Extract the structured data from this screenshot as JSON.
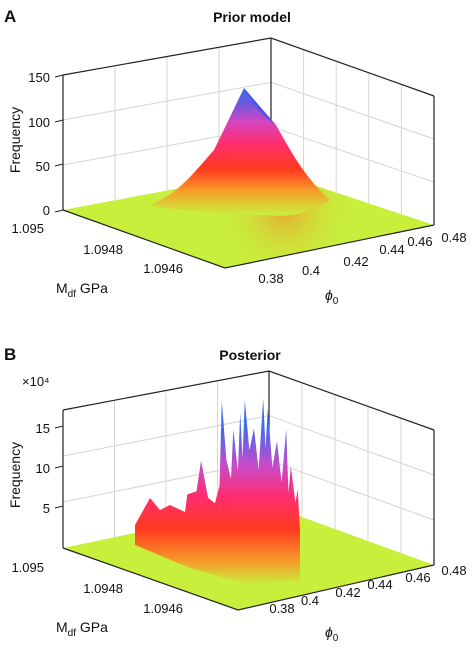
{
  "chart_data": [
    {
      "type": "surface3d",
      "panel_letter": "A",
      "title": "Prior model",
      "zlabel": "Frequency",
      "xlabel": "M",
      "xlabel_sub": "df",
      "xlabel_unit": " GPa",
      "ylabel": "ϕ",
      "ylabel_sub": "0",
      "z_ticks": [
        "0",
        "50",
        "100",
        "150"
      ],
      "z_exponent": "",
      "x_ticks": [
        "1.095",
        "1.0948",
        "1.0946"
      ],
      "y_ticks": [
        "0.38",
        "0.4",
        "0.42",
        "0.44",
        "0.46",
        "0.48"
      ],
      "zlim": [
        0,
        150
      ],
      "ylim": [
        0.37,
        0.48
      ],
      "peak": {
        "phi0": 0.41,
        "Mdf": 1.0948,
        "frequency": 137
      },
      "colormap": [
        "#c8ef3c",
        "#ff3a1f",
        "#ff2d6e",
        "#d246c2",
        "#5a5ce6",
        "#3b6df0"
      ]
    },
    {
      "type": "surface3d",
      "panel_letter": "B",
      "title": "Posterior",
      "zlabel": "Frequency",
      "xlabel": "M",
      "xlabel_sub": "df",
      "xlabel_unit": " GPa",
      "ylabel": "ϕ",
      "ylabel_sub": "0",
      "z_ticks": [
        "5",
        "10",
        "15"
      ],
      "z_exponent": "×10⁴",
      "x_ticks": [
        "1.095",
        "1.0948",
        "1.0946"
      ],
      "y_ticks": [
        "0.38",
        "0.4",
        "0.42",
        "0.44",
        "0.46",
        "0.48"
      ],
      "zlim": [
        0,
        170000
      ],
      "ylim": [
        0.37,
        0.48
      ],
      "profile_phi0": [
        0.365,
        0.366,
        0.37,
        0.372,
        0.375,
        0.378,
        0.38,
        0.381,
        0.383,
        0.385,
        0.386,
        0.388,
        0.389,
        0.39,
        0.391,
        0.393,
        0.395,
        0.397,
        0.399,
        0.4,
        0.401,
        0.403,
        0.405,
        0.407,
        0.409,
        0.41,
        0.411,
        0.413,
        0.414,
        0.415
      ],
      "profile_frequency": [
        0,
        20000,
        25000,
        60000,
        20000,
        15000,
        35000,
        130000,
        65000,
        45000,
        100000,
        55000,
        120000,
        70000,
        135000,
        80000,
        105000,
        60000,
        140000,
        85000,
        130000,
        65000,
        95000,
        50000,
        110000,
        40000,
        70000,
        30000,
        45000,
        0
      ],
      "colormap": [
        "#c8ef3c",
        "#ff3a1f",
        "#ff2d6e",
        "#d246c2",
        "#5a5ce6",
        "#3b6df0"
      ]
    }
  ]
}
